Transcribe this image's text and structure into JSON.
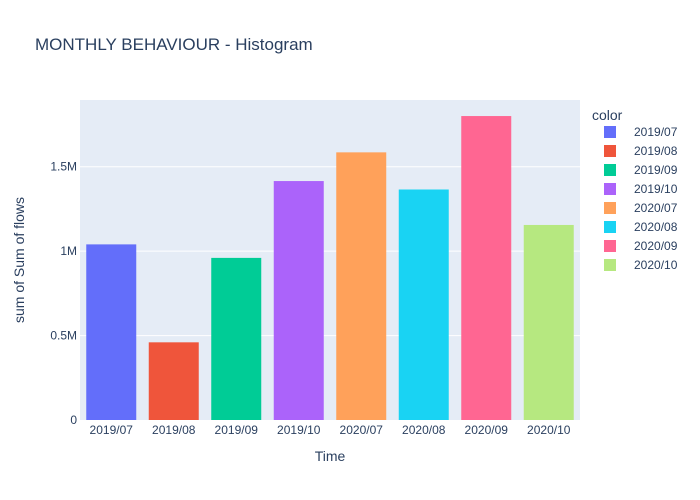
{
  "chart_data": {
    "type": "bar",
    "title": "MONTHLY BEHAVIOUR - Histogram",
    "xlabel": "Time",
    "ylabel": "sum of Sum of flows",
    "categories": [
      "2019/07",
      "2019/08",
      "2019/09",
      "2019/10",
      "2020/07",
      "2020/08",
      "2020/09",
      "2020/10"
    ],
    "values": [
      1040000,
      460000,
      960000,
      1415000,
      1585000,
      1365000,
      1800000,
      1155000
    ],
    "ylim": [
      0,
      1895000
    ],
    "yticks": [
      {
        "value": 0,
        "label": "0"
      },
      {
        "value": 500000,
        "label": "0.5M"
      },
      {
        "value": 1000000,
        "label": "1M"
      },
      {
        "value": 1500000,
        "label": "1.5M"
      }
    ],
    "legend": {
      "title": "color",
      "placement": "right",
      "entries": [
        "2019/07",
        "2019/08",
        "2019/09",
        "2019/10",
        "2020/07",
        "2020/08",
        "2020/09",
        "2020/10"
      ]
    },
    "colors": [
      "#636efa",
      "#ef553b",
      "#00cc96",
      "#ab63fa",
      "#ffa15a",
      "#19d3f3",
      "#ff6692",
      "#b6e880"
    ],
    "plot_background": "#e5ecf6",
    "grid": true
  }
}
